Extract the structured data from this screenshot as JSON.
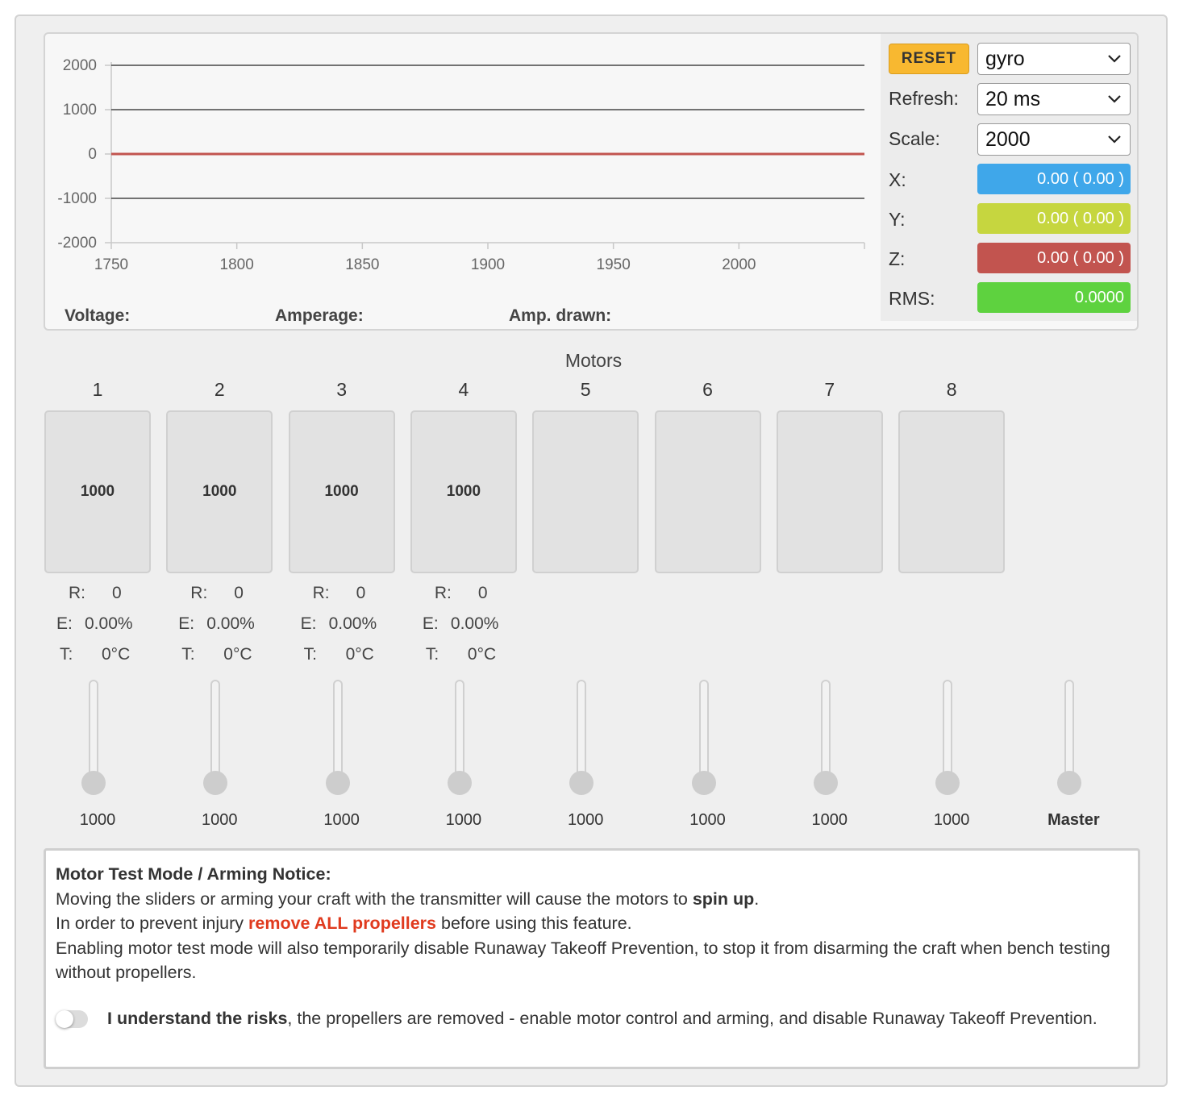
{
  "graph": {
    "controls": {
      "reset_label": "RESET",
      "sensor_select": "gyro",
      "refresh_label": "Refresh:",
      "refresh_select": "20 ms",
      "scale_label": "Scale:",
      "scale_select": "2000"
    },
    "readouts": [
      {
        "label": "X:",
        "value": "0.00 ( 0.00 )",
        "color": "#3fa7ea"
      },
      {
        "label": "Y:",
        "value": "0.00 ( 0.00 )",
        "color": "#c6d63f"
      },
      {
        "label": "Z:",
        "value": "0.00 ( 0.00 )",
        "color": "#c2544f"
      },
      {
        "label": "RMS:",
        "value": "0.0000",
        "color": "#5ed23f"
      }
    ],
    "power": {
      "voltage_label": "Voltage:",
      "amperage_label": "Amperage:",
      "amp_drawn_label": "Amp. drawn:"
    }
  },
  "chart_data": {
    "type": "line",
    "x_ticks": [
      1750,
      1800,
      1850,
      1900,
      1950,
      2000
    ],
    "y_ticks": [
      2000,
      1000,
      0,
      -1000,
      -2000
    ],
    "xlim": [
      1750,
      2050
    ],
    "ylim": [
      -2000,
      2000
    ],
    "grid": true,
    "series": [
      {
        "x": [
          1750,
          2050
        ],
        "y": [
          0,
          0
        ],
        "color": "#3fa7ea"
      },
      {
        "x": [
          1750,
          2050
        ],
        "y": [
          0,
          0
        ],
        "color": "#c6d63f"
      },
      {
        "x": [
          1750,
          2050
        ],
        "y": [
          0,
          0
        ],
        "color": "#c2544f"
      }
    ]
  },
  "motors": {
    "title": "Motors",
    "numbers": [
      "1",
      "2",
      "3",
      "4",
      "5",
      "6",
      "7",
      "8"
    ],
    "values": [
      "1000",
      "1000",
      "1000",
      "1000",
      "",
      "",
      "",
      ""
    ],
    "telemetry_labels": {
      "r": "R:",
      "e": "E:",
      "t": "T:"
    },
    "telemetry": [
      {
        "r": "0",
        "e": "0.00%",
        "t": "0°C"
      },
      {
        "r": "0",
        "e": "0.00%",
        "t": "0°C"
      },
      {
        "r": "0",
        "e": "0.00%",
        "t": "0°C"
      },
      {
        "r": "0",
        "e": "0.00%",
        "t": "0°C"
      }
    ],
    "slider_values": [
      "1000",
      "1000",
      "1000",
      "1000",
      "1000",
      "1000",
      "1000",
      "1000"
    ],
    "master_label": "Master",
    "slider_level": 0
  },
  "notice": {
    "heading": "Motor Test Mode / Arming Notice:",
    "line1_pre": "Moving the sliders or arming your craft with the transmitter will cause the motors to ",
    "line1_bold": "spin up",
    "line1_post": ".",
    "line2_pre": "In order to prevent injury ",
    "line2_warn": "remove ALL propellers",
    "line2_post": " before using this feature.",
    "line3": "Enabling motor test mode will also temporarily disable Runaway Takeoff Prevention, to stop it from disarming the craft when bench testing without propellers.",
    "toggle_bold": "I understand the risks",
    "toggle_text": ", the propellers are removed - enable motor control and arming, and disable Runaway Takeoff Prevention.",
    "toggle_on": false
  }
}
